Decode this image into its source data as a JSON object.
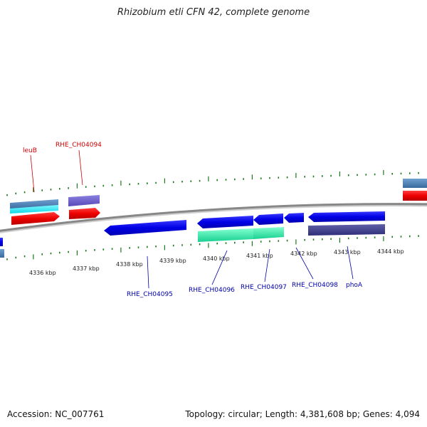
{
  "title": "Rhizobium etli CFN 42, complete genome",
  "footer": {
    "accession": "Accession: NC_007761",
    "summary": "Topology: circular; Length: 4,381,608 bp; Genes: 4,094"
  },
  "colors": {
    "backbone": "#888888",
    "tick": "#1a7a1a",
    "label_top": "#cc0000",
    "label_bottom": "#0000aa"
  },
  "ticks": [
    "4336 kbp",
    "4337 kbp",
    "4338 kbp",
    "4339 kbp",
    "4340 kbp",
    "4341 kbp",
    "4342 kbp",
    "4343 kbp",
    "4344 kbp"
  ],
  "top_genes": [
    {
      "name": "leuB"
    },
    {
      "name": "RHE_CH04094"
    }
  ],
  "bottom_genes": [
    {
      "name": "RHE_CH04095"
    },
    {
      "name": "RHE_CH04096"
    },
    {
      "name": "RHE_CH04097"
    },
    {
      "name": "RHE_CH04098"
    },
    {
      "name": "phoA"
    }
  ]
}
